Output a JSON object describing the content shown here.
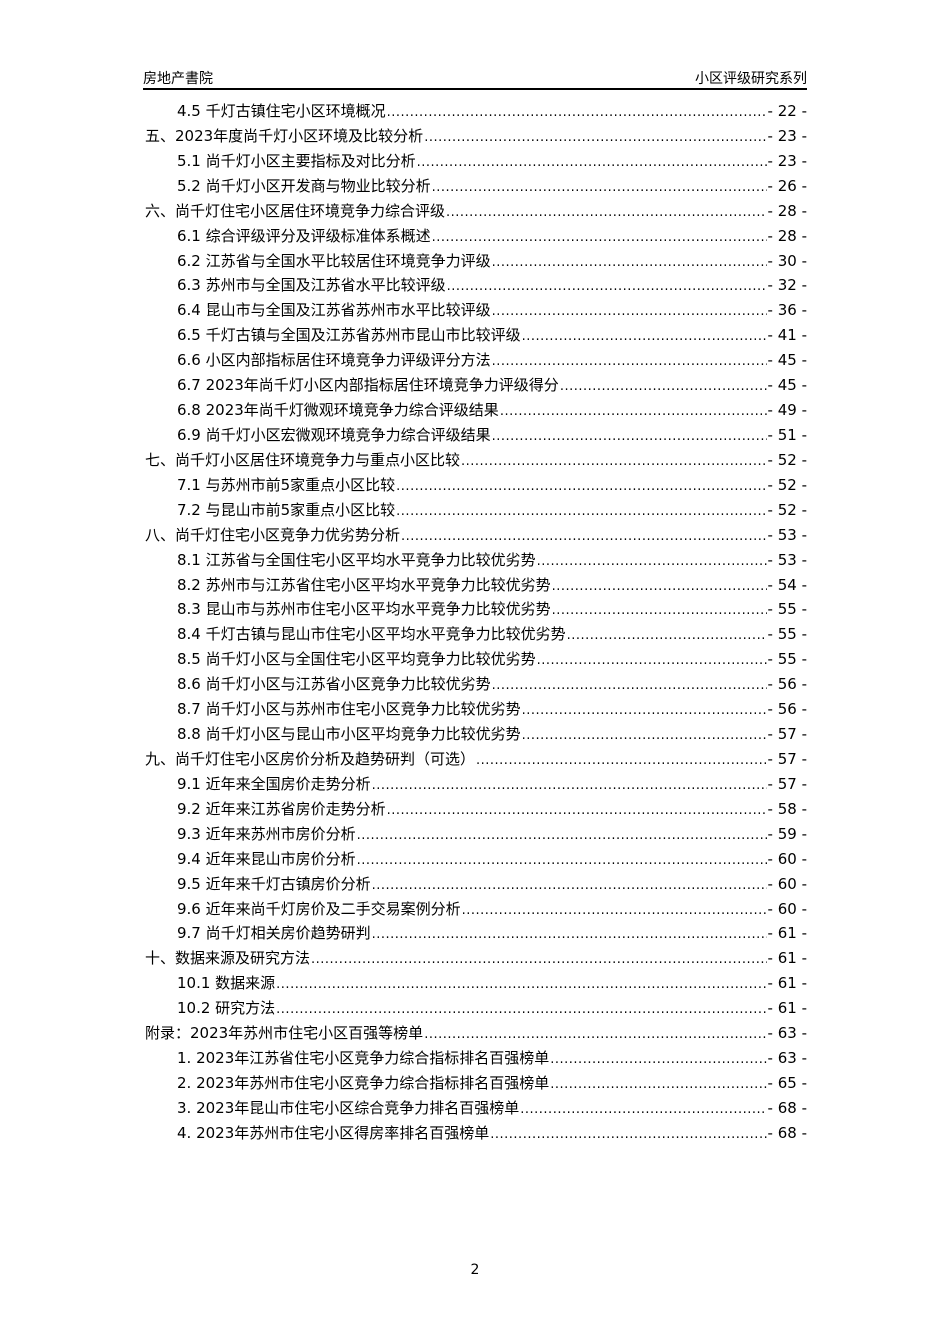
{
  "header": {
    "left": "房地产書院",
    "right": "小区评级研究系列"
  },
  "toc": [
    {
      "level": 2,
      "title": "4.5 千灯古镇住宅小区环境概况",
      "page": "- 22 -"
    },
    {
      "level": 1,
      "title": "五、2023年度尚千灯小区环境及比较分析",
      "page": "- 23 -"
    },
    {
      "level": 2,
      "title": "5.1 尚千灯小区主要指标及对比分析",
      "page": "- 23 -"
    },
    {
      "level": 2,
      "title": "5.2 尚千灯小区开发商与物业比较分析",
      "page": "- 26 -"
    },
    {
      "level": 1,
      "title": "六、尚千灯住宅小区居住环境竞争力综合评级",
      "page": "- 28 -"
    },
    {
      "level": 2,
      "title": "6.1 综合评级评分及评级标准体系概述",
      "page": "- 28 -"
    },
    {
      "level": 2,
      "title": "6.2 江苏省与全国水平比较居住环境竞争力评级",
      "page": "- 30 -"
    },
    {
      "level": 2,
      "title": "6.3 苏州市与全国及江苏省水平比较评级",
      "page": "- 32 -"
    },
    {
      "level": 2,
      "title": "6.4 昆山市与全国及江苏省苏州市水平比较评级",
      "page": "- 36 -"
    },
    {
      "level": 2,
      "title": "6.5 千灯古镇与全国及江苏省苏州市昆山市比较评级",
      "page": "- 41 -"
    },
    {
      "level": 2,
      "title": "6.6 小区内部指标居住环境竞争力评级评分方法",
      "page": "- 45 -"
    },
    {
      "level": 2,
      "title": "6.7 2023年尚千灯小区内部指标居住环境竞争力评级得分",
      "page": "- 45 -"
    },
    {
      "level": 2,
      "title": "6.8 2023年尚千灯微观环境竞争力综合评级结果",
      "page": "- 49 -"
    },
    {
      "level": 2,
      "title": "6.9 尚千灯小区宏微观环境竞争力综合评级结果",
      "page": "- 51 -"
    },
    {
      "level": 1,
      "title": "七、尚千灯小区居住环境竞争力与重点小区比较",
      "page": "- 52 -"
    },
    {
      "level": 2,
      "title": "7.1 与苏州市前5家重点小区比较",
      "page": "- 52 -"
    },
    {
      "level": 2,
      "title": "7.2 与昆山市前5家重点小区比较",
      "page": "- 52 -"
    },
    {
      "level": 1,
      "title": "八、尚千灯住宅小区竞争力优劣势分析",
      "page": "- 53 -"
    },
    {
      "level": 2,
      "title": "8.1 江苏省与全国住宅小区平均水平竞争力比较优劣势",
      "page": "- 53 -"
    },
    {
      "level": 2,
      "title": "8.2 苏州市与江苏省住宅小区平均水平竞争力比较优劣势",
      "page": "- 54 -"
    },
    {
      "level": 2,
      "title": "8.3 昆山市与苏州市住宅小区平均水平竞争力比较优劣势",
      "page": "- 55 -"
    },
    {
      "level": 2,
      "title": "8.4 千灯古镇与昆山市住宅小区平均水平竞争力比较优劣势",
      "page": "- 55 -"
    },
    {
      "level": 2,
      "title": "8.5 尚千灯小区与全国住宅小区平均竞争力比较优劣势",
      "page": "- 55 -"
    },
    {
      "level": 2,
      "title": "8.6 尚千灯小区与江苏省小区竞争力比较优劣势",
      "page": "- 56 -"
    },
    {
      "level": 2,
      "title": "8.7 尚千灯小区与苏州市住宅小区竞争力比较优劣势",
      "page": "- 56 -"
    },
    {
      "level": 2,
      "title": "8.8 尚千灯小区与昆山市小区平均竞争力比较优劣势",
      "page": "- 57 -"
    },
    {
      "level": 1,
      "title": "九、尚千灯住宅小区房价分析及趋势研判（可选）",
      "page": "- 57 -"
    },
    {
      "level": 2,
      "title": "9.1 近年来全国房价走势分析",
      "page": "- 57 -"
    },
    {
      "level": 2,
      "title": "9.2 近年来江苏省房价走势分析",
      "page": "- 58 -"
    },
    {
      "level": 2,
      "title": "9.3 近年来苏州市房价分析",
      "page": "- 59 -"
    },
    {
      "level": 2,
      "title": "9.4 近年来昆山市房价分析",
      "page": "- 60 -"
    },
    {
      "level": 2,
      "title": "9.5 近年来千灯古镇房价分析",
      "page": "- 60 -"
    },
    {
      "level": 2,
      "title": "9.6 近年来尚千灯房价及二手交易案例分析",
      "page": "- 60 -"
    },
    {
      "level": 2,
      "title": "9.7 尚千灯相关房价趋势研判",
      "page": "- 61 -"
    },
    {
      "level": 1,
      "title": "十、数据来源及研究方法",
      "page": "- 61 -"
    },
    {
      "level": 2,
      "title": "10.1 数据来源",
      "page": "- 61 -"
    },
    {
      "level": 2,
      "title": "10.2 研究方法",
      "page": "- 61 -"
    },
    {
      "level": 1,
      "title": "附录：2023年苏州市住宅小区百强等榜单",
      "page": "- 63 -"
    },
    {
      "level": 2,
      "title": "1. 2023年江苏省住宅小区竞争力综合指标排名百强榜单",
      "page": "- 63 -"
    },
    {
      "level": 2,
      "title": "2. 2023年苏州市住宅小区竞争力综合指标排名百强榜单",
      "page": "- 65 -"
    },
    {
      "level": 2,
      "title": "3. 2023年昆山市住宅小区综合竞争力排名百强榜单",
      "page": "- 68 -"
    },
    {
      "level": 2,
      "title": "4. 2023年苏州市住宅小区得房率排名百强榜单",
      "page": "- 68 -"
    }
  ],
  "footer": {
    "page_number": "2"
  }
}
